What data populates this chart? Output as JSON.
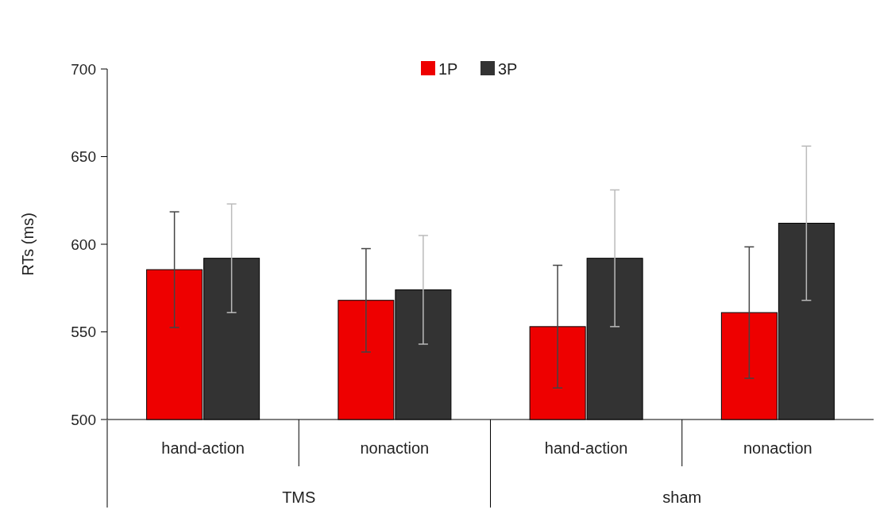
{
  "chart_data": {
    "type": "bar",
    "ylabel": "RTs (ms)",
    "categories": [
      "hand-action",
      "nonaction",
      "hand-action",
      "nonaction"
    ],
    "series": [
      {
        "name": "1P",
        "color": "#ee0000",
        "values": [
          585.5,
          568,
          553,
          561
        ],
        "errors": [
          33,
          29.5,
          35,
          37.5
        ]
      },
      {
        "name": "3P",
        "color": "#333333",
        "values": [
          592,
          574,
          592,
          612
        ],
        "errors": [
          31,
          31,
          39,
          44
        ]
      }
    ],
    "annotations": [
      "TMS",
      "sham"
    ],
    "ylim": [
      500,
      700
    ],
    "yticks": [
      500,
      550,
      600,
      650,
      700
    ],
    "grid": false,
    "legend": "top"
  }
}
